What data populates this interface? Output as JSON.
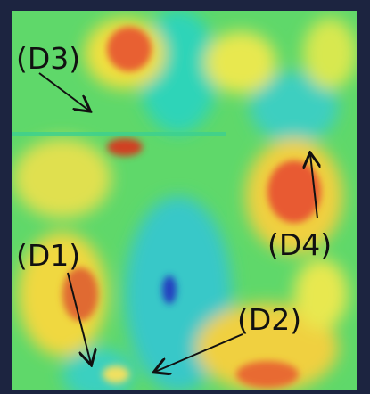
{
  "labels": [
    "(D3)",
    "(D4)",
    "(D1)",
    "(D2)"
  ]
}
